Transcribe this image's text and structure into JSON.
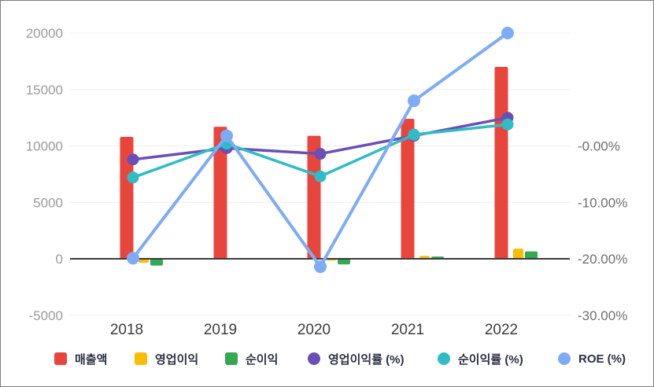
{
  "chart_data": {
    "type": "combo-bar-line",
    "title": "",
    "categories": [
      "2018",
      "2019",
      "2020",
      "2021",
      "2022"
    ],
    "bar_series": [
      {
        "key": "revenue",
        "name": "매출액",
        "color": "#e8463c",
        "axis": "left",
        "values": [
          10800,
          11700,
          10900,
          12400,
          17000
        ]
      },
      {
        "key": "operating-profit",
        "name": "영업이익",
        "color": "#fbbc04",
        "axis": "left",
        "values": [
          -350,
          30,
          -150,
          250,
          900
        ]
      },
      {
        "key": "net-profit",
        "name": "순이익",
        "color": "#34a853",
        "axis": "left",
        "values": [
          -600,
          20,
          -500,
          200,
          650
        ]
      }
    ],
    "line_series": [
      {
        "key": "operating-margin",
        "name": "영업이익률 (%)",
        "color": "#6a4fb6",
        "axis": "right",
        "values": [
          -2.4,
          -0.4,
          -1.4,
          1.8,
          5.0
        ]
      },
      {
        "key": "net-margin",
        "name": "순이익률 (%)",
        "color": "#30bcc4",
        "axis": "right",
        "values": [
          -5.6,
          0.4,
          -5.4,
          2.0,
          3.8
        ]
      },
      {
        "key": "roe",
        "name": "ROE (%)",
        "color": "#7dabf5",
        "axis": "right",
        "values": [
          -19.9,
          1.8,
          -21.4,
          8.0,
          20.0
        ]
      }
    ],
    "left_axis": {
      "min": -5000,
      "max": 20000,
      "ticks": [
        20000,
        15000,
        10000,
        5000,
        0,
        -5000
      ],
      "labels": [
        "20000",
        "15000",
        "10000",
        "5000",
        "0",
        "-5000"
      ]
    },
    "right_axis": {
      "ticks": [
        0,
        -10,
        -20,
        -30
      ],
      "labels": [
        "-0.00%",
        "-10.00%",
        "-20.00%",
        "-30.00%"
      ]
    },
    "grid": "horizontal",
    "legend_position": "bottom",
    "zero_line_color": "#3a3a3a",
    "grid_color": "#ededed"
  },
  "legend": {
    "items": [
      {
        "label": "매출액",
        "color": "#e8463c",
        "shape": "square"
      },
      {
        "label": "영업이익",
        "color": "#fbbc04",
        "shape": "square"
      },
      {
        "label": "순이익",
        "color": "#34a853",
        "shape": "square"
      },
      {
        "label": "영업이익률 (%)",
        "color": "#6a4fb6",
        "shape": "circle"
      },
      {
        "label": "순이익률 (%)",
        "color": "#30bcc4",
        "shape": "circle"
      },
      {
        "label": "ROE (%)",
        "color": "#7dabf5",
        "shape": "circle"
      }
    ]
  }
}
